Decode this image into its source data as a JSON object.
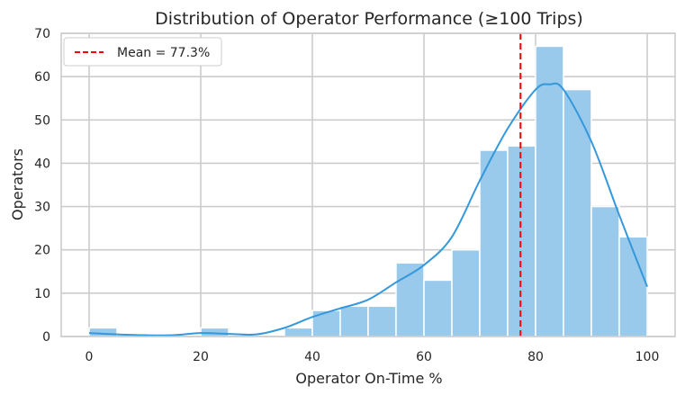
{
  "chart_data": {
    "type": "histogram",
    "title": "Distribution of Operator Performance (≥100 Trips)",
    "xlabel": "Operator On-Time %",
    "ylabel": "Operators",
    "xlim": [
      -5,
      105
    ],
    "ylim": [
      0,
      70
    ],
    "x_ticks": [
      0,
      20,
      40,
      60,
      80,
      100
    ],
    "y_ticks": [
      0,
      10,
      20,
      30,
      40,
      50,
      60,
      70
    ],
    "grid": true,
    "legend_position": "top-left",
    "bin_width": 5,
    "bins": [
      {
        "start": 0,
        "end": 5,
        "count": 2
      },
      {
        "start": 5,
        "end": 10,
        "count": 0
      },
      {
        "start": 10,
        "end": 15,
        "count": 0
      },
      {
        "start": 15,
        "end": 20,
        "count": 0
      },
      {
        "start": 20,
        "end": 25,
        "count": 2
      },
      {
        "start": 25,
        "end": 30,
        "count": 0
      },
      {
        "start": 30,
        "end": 35,
        "count": 0
      },
      {
        "start": 35,
        "end": 40,
        "count": 2
      },
      {
        "start": 40,
        "end": 45,
        "count": 6
      },
      {
        "start": 45,
        "end": 50,
        "count": 7
      },
      {
        "start": 50,
        "end": 55,
        "count": 7
      },
      {
        "start": 55,
        "end": 60,
        "count": 17
      },
      {
        "start": 60,
        "end": 65,
        "count": 13
      },
      {
        "start": 65,
        "end": 70,
        "count": 20
      },
      {
        "start": 70,
        "end": 75,
        "count": 43
      },
      {
        "start": 75,
        "end": 80,
        "count": 44
      },
      {
        "start": 80,
        "end": 85,
        "count": 67
      },
      {
        "start": 85,
        "end": 90,
        "count": 57
      },
      {
        "start": 90,
        "end": 95,
        "count": 30
      },
      {
        "start": 95,
        "end": 100,
        "count": 23
      }
    ],
    "kde": {
      "x": [
        0,
        5,
        10,
        15,
        20,
        25,
        30,
        35,
        40,
        45,
        50,
        55,
        60,
        65,
        70,
        75,
        80,
        82.5,
        85,
        90,
        95,
        100
      ],
      "y": [
        0.8,
        0.5,
        0.3,
        0.3,
        0.8,
        0.6,
        0.5,
        2,
        4.5,
        6.5,
        8.5,
        12.5,
        16.5,
        23,
        36,
        48,
        57,
        58.2,
        57,
        45,
        28,
        11.5
      ]
    },
    "mean": {
      "value": 77.3,
      "label": "Mean = 77.3%"
    },
    "colors": {
      "bars": "#99c9eb",
      "bar_edge": "#ffffff",
      "kde": "#3498db",
      "mean_line": "#ff0000",
      "grid": "#cccccc",
      "spine": "#cccccc"
    }
  }
}
